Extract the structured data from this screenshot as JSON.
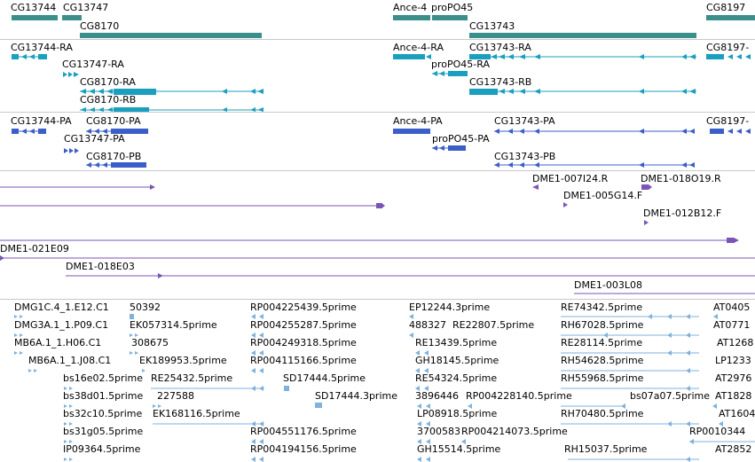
{
  "colors": {
    "gene": "#3a8f8a",
    "transcript": "#1a9fbf",
    "protein": "#3b5fc8",
    "clone": "#7a55b5",
    "est": "#7fb2dc"
  },
  "genes": {
    "labels": [
      "CG13744",
      "CG13747",
      "CG8170",
      "Ance-4",
      "proPO45",
      "CG13743",
      "CG8197"
    ]
  },
  "transcripts": {
    "labels": [
      "CG13744-RA",
      "CG13747-RA",
      "CG8170-RA",
      "CG8170-RB",
      "Ance-4-RA",
      "CG13743-RA",
      "proPO45-RA",
      "CG13743-RB",
      "CG8197-"
    ]
  },
  "proteins": {
    "labels": [
      "CG13744-PA",
      "CG8170-PA",
      "CG13747-PA",
      "CG8170-PB",
      "Ance-4-PA",
      "CG13743-PA",
      "proPO45-PA",
      "CG13743-PB",
      "CG8197-"
    ]
  },
  "clones": {
    "labels": [
      "DME1-007I24.R",
      "DME1-018O19.R",
      "DME1-005G14.F",
      "DME1-012B12.F",
      "DME1-021E09",
      "DME1-018E03",
      "DME1-003L08"
    ]
  },
  "ests": {
    "labels": [
      "DMG1C.4_1.E12.C1",
      "50392",
      "RP004225439.5prime",
      "EP12244.3prime",
      "RE74342.5prime",
      "AT0405",
      "DMG3A.1_1.P09.C1",
      "EK057314.5prime",
      "RP004255287.5prime",
      "488327",
      "RE22807.5prime",
      "RH67028.5prime",
      "AT0771",
      "MB6A.1_1.H06.C1",
      "308675",
      "RP004249318.5prime",
      "RE13439.5prime",
      "RE28114.5prime",
      "AT1268",
      "MB6A.1_1.J08.C1",
      "EK189953.5prime",
      "RP004115166.5prime",
      "GH18145.5prime",
      "RH54628.5prime",
      "LP1233",
      "bs16e02.5prime",
      "RE25432.5prime",
      "SD17444.5prime",
      "RE54324.5prime",
      "RH55968.5prime",
      "AT2976",
      "bs38d01.5prime",
      "227588",
      "SD17444.3prime",
      "3896446",
      "RP004228140.5prime",
      "bs07a07.5prime",
      "AT1828",
      "bs32c10.5prime",
      "EK168116.5prime",
      "LP08918.5prime",
      "RH70480.5prime",
      "AT1604",
      "bs31g05.5prime",
      "RP004551176.5prime",
      "3700583",
      "RP004214073.5prime",
      "RP0010344",
      "IP09364.5prime",
      "RP004194156.5prime",
      "GH15514.5prime",
      "RH15037.5prime",
      "AT2852"
    ]
  }
}
